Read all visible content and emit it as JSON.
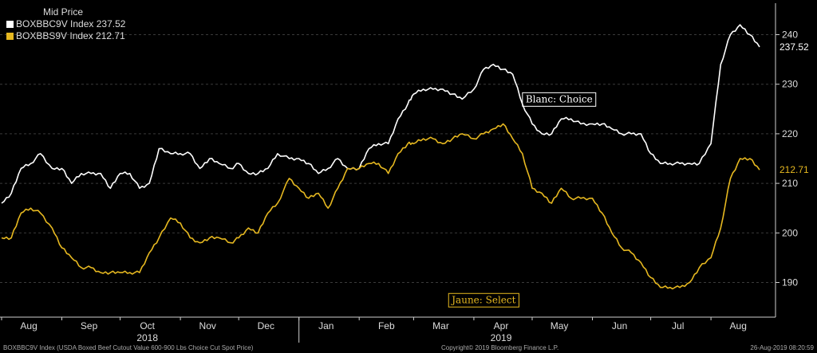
{
  "legend": {
    "title": "Mid Price",
    "entries": [
      {
        "label": "BOXBBC9V Index 237.52",
        "color": "#ffffff"
      },
      {
        "label": "BOXBBS9V Index 212.71",
        "color": "#e6b820"
      }
    ]
  },
  "footer": {
    "left": "BOXBBC9V Index (USDA Boxed Beef Cutout Value 600-900 Lbs Choice Cut Spot Price)",
    "center": "Copyright© 2019 Bloomberg Finance L.P.",
    "right": "26-Aug-2019 08:20:59"
  },
  "chart_data": {
    "type": "line",
    "x_months": [
      "Aug",
      "Sep",
      "Oct",
      "Nov",
      "Dec",
      "Jan",
      "Feb",
      "Mar",
      "Apr",
      "May",
      "Jun",
      "Jul",
      "Aug"
    ],
    "x_years": [
      "2018",
      "2019"
    ],
    "x_range": [
      "2018-08-01",
      "2019-08-26"
    ],
    "ylim": [
      184,
      248
    ],
    "yticks": [
      190,
      200,
      210,
      220,
      230,
      240
    ],
    "y_axis_position": "right",
    "grid": "horizontal dashed",
    "legend_position": "top-left",
    "annotations": [
      {
        "text": "Blanc: Choice",
        "series": 0,
        "date": "2019-04-26",
        "y": 227,
        "color": "#ffffff"
      },
      {
        "text": "Jaune: Select",
        "series": 1,
        "date": "2019-03-19",
        "y": 186.5,
        "color": "#e6b820"
      }
    ],
    "last_values": [
      "237.52",
      "212.71"
    ],
    "series": [
      {
        "name": "BOXBBC9V Index",
        "color": "#ffffff",
        "points": [
          [
            "2018-08-01",
            206
          ],
          [
            "2018-08-06",
            208
          ],
          [
            "2018-08-11",
            213
          ],
          [
            "2018-08-16",
            214
          ],
          [
            "2018-08-21",
            216
          ],
          [
            "2018-08-27",
            213
          ],
          [
            "2018-09-01",
            213
          ],
          [
            "2018-09-06",
            210
          ],
          [
            "2018-09-11",
            212
          ],
          [
            "2018-09-16",
            212
          ],
          [
            "2018-09-21",
            212
          ],
          [
            "2018-09-26",
            209
          ],
          [
            "2018-10-01",
            212
          ],
          [
            "2018-10-06",
            212
          ],
          [
            "2018-10-11",
            209
          ],
          [
            "2018-10-16",
            210
          ],
          [
            "2018-10-21",
            217
          ],
          [
            "2018-10-27",
            216
          ],
          [
            "2018-11-01",
            216
          ],
          [
            "2018-11-06",
            216
          ],
          [
            "2018-11-11",
            213
          ],
          [
            "2018-11-16",
            215
          ],
          [
            "2018-11-21",
            214
          ],
          [
            "2018-11-27",
            213
          ],
          [
            "2018-12-01",
            214
          ],
          [
            "2018-12-06",
            212
          ],
          [
            "2018-12-11",
            212
          ],
          [
            "2018-12-16",
            213
          ],
          [
            "2018-12-21",
            216
          ],
          [
            "2018-12-27",
            215
          ],
          [
            "2019-01-01",
            215
          ],
          [
            "2019-01-06",
            214
          ],
          [
            "2019-01-11",
            212
          ],
          [
            "2019-01-16",
            213
          ],
          [
            "2019-01-21",
            215
          ],
          [
            "2019-01-26",
            213
          ],
          [
            "2019-02-01",
            213
          ],
          [
            "2019-02-06",
            217
          ],
          [
            "2019-02-11",
            218
          ],
          [
            "2019-02-16",
            218
          ],
          [
            "2019-02-21",
            223
          ],
          [
            "2019-02-26",
            226
          ],
          [
            "2019-03-01",
            228
          ],
          [
            "2019-03-06",
            229
          ],
          [
            "2019-03-11",
            229
          ],
          [
            "2019-03-16",
            229
          ],
          [
            "2019-03-21",
            228
          ],
          [
            "2019-03-26",
            227
          ],
          [
            "2019-04-01",
            229
          ],
          [
            "2019-04-06",
            233
          ],
          [
            "2019-04-11",
            234
          ],
          [
            "2019-04-16",
            233
          ],
          [
            "2019-04-21",
            232
          ],
          [
            "2019-04-26",
            226
          ],
          [
            "2019-05-01",
            222
          ],
          [
            "2019-05-06",
            220
          ],
          [
            "2019-05-11",
            220
          ],
          [
            "2019-05-16",
            223
          ],
          [
            "2019-05-21",
            223
          ],
          [
            "2019-05-26",
            222
          ],
          [
            "2019-06-01",
            222
          ],
          [
            "2019-06-06",
            222
          ],
          [
            "2019-06-11",
            221
          ],
          [
            "2019-06-16",
            220
          ],
          [
            "2019-06-21",
            220
          ],
          [
            "2019-06-26",
            220
          ],
          [
            "2019-07-01",
            216
          ],
          [
            "2019-07-06",
            214
          ],
          [
            "2019-07-11",
            214
          ],
          [
            "2019-07-16",
            214
          ],
          [
            "2019-07-21",
            214
          ],
          [
            "2019-07-26",
            214
          ],
          [
            "2019-08-01",
            218
          ],
          [
            "2019-08-06",
            234
          ],
          [
            "2019-08-11",
            240
          ],
          [
            "2019-08-16",
            242
          ],
          [
            "2019-08-21",
            240
          ],
          [
            "2019-08-26",
            237.52
          ]
        ]
      },
      {
        "name": "BOXBBS9V Index",
        "color": "#e6b820",
        "points": [
          [
            "2018-08-01",
            199
          ],
          [
            "2018-08-06",
            199
          ],
          [
            "2018-08-11",
            204
          ],
          [
            "2018-08-16",
            205
          ],
          [
            "2018-08-21",
            204
          ],
          [
            "2018-08-27",
            201
          ],
          [
            "2018-09-01",
            197
          ],
          [
            "2018-09-06",
            195
          ],
          [
            "2018-09-11",
            193
          ],
          [
            "2018-09-16",
            193
          ],
          [
            "2018-09-21",
            192
          ],
          [
            "2018-09-26",
            192
          ],
          [
            "2018-10-01",
            192
          ],
          [
            "2018-10-06",
            192
          ],
          [
            "2018-10-11",
            192
          ],
          [
            "2018-10-16",
            196
          ],
          [
            "2018-10-21",
            199
          ],
          [
            "2018-10-27",
            203
          ],
          [
            "2018-11-01",
            202
          ],
          [
            "2018-11-06",
            199
          ],
          [
            "2018-11-11",
            198
          ],
          [
            "2018-11-16",
            199
          ],
          [
            "2018-11-21",
            199
          ],
          [
            "2018-11-27",
            198
          ],
          [
            "2018-12-01",
            199
          ],
          [
            "2018-12-06",
            201
          ],
          [
            "2018-12-11",
            200
          ],
          [
            "2018-12-16",
            204
          ],
          [
            "2018-12-21",
            206
          ],
          [
            "2018-12-27",
            211
          ],
          [
            "2019-01-01",
            209
          ],
          [
            "2019-01-06",
            207
          ],
          [
            "2019-01-11",
            208
          ],
          [
            "2019-01-16",
            205
          ],
          [
            "2019-01-21",
            209
          ],
          [
            "2019-01-26",
            213
          ],
          [
            "2019-02-01",
            213
          ],
          [
            "2019-02-06",
            214
          ],
          [
            "2019-02-11",
            214
          ],
          [
            "2019-02-16",
            212
          ],
          [
            "2019-02-21",
            216
          ],
          [
            "2019-02-26",
            218
          ],
          [
            "2019-03-01",
            218
          ],
          [
            "2019-03-06",
            219
          ],
          [
            "2019-03-11",
            219
          ],
          [
            "2019-03-16",
            218
          ],
          [
            "2019-03-21",
            219
          ],
          [
            "2019-03-26",
            220
          ],
          [
            "2019-04-01",
            219
          ],
          [
            "2019-04-06",
            220
          ],
          [
            "2019-04-11",
            221
          ],
          [
            "2019-04-16",
            222
          ],
          [
            "2019-04-21",
            219
          ],
          [
            "2019-04-26",
            216
          ],
          [
            "2019-05-01",
            209
          ],
          [
            "2019-05-06",
            208
          ],
          [
            "2019-05-11",
            206
          ],
          [
            "2019-05-16",
            209
          ],
          [
            "2019-05-21",
            207
          ],
          [
            "2019-05-26",
            207
          ],
          [
            "2019-06-01",
            207
          ],
          [
            "2019-06-06",
            204
          ],
          [
            "2019-06-11",
            200
          ],
          [
            "2019-06-16",
            197
          ],
          [
            "2019-06-21",
            196
          ],
          [
            "2019-06-26",
            194
          ],
          [
            "2019-07-01",
            191
          ],
          [
            "2019-07-06",
            189
          ],
          [
            "2019-07-11",
            189
          ],
          [
            "2019-07-16",
            189
          ],
          [
            "2019-07-21",
            190
          ],
          [
            "2019-07-26",
            193
          ],
          [
            "2019-08-01",
            195
          ],
          [
            "2019-08-06",
            201
          ],
          [
            "2019-08-11",
            211
          ],
          [
            "2019-08-16",
            215
          ],
          [
            "2019-08-21",
            215
          ],
          [
            "2019-08-26",
            212.71
          ]
        ]
      }
    ]
  }
}
